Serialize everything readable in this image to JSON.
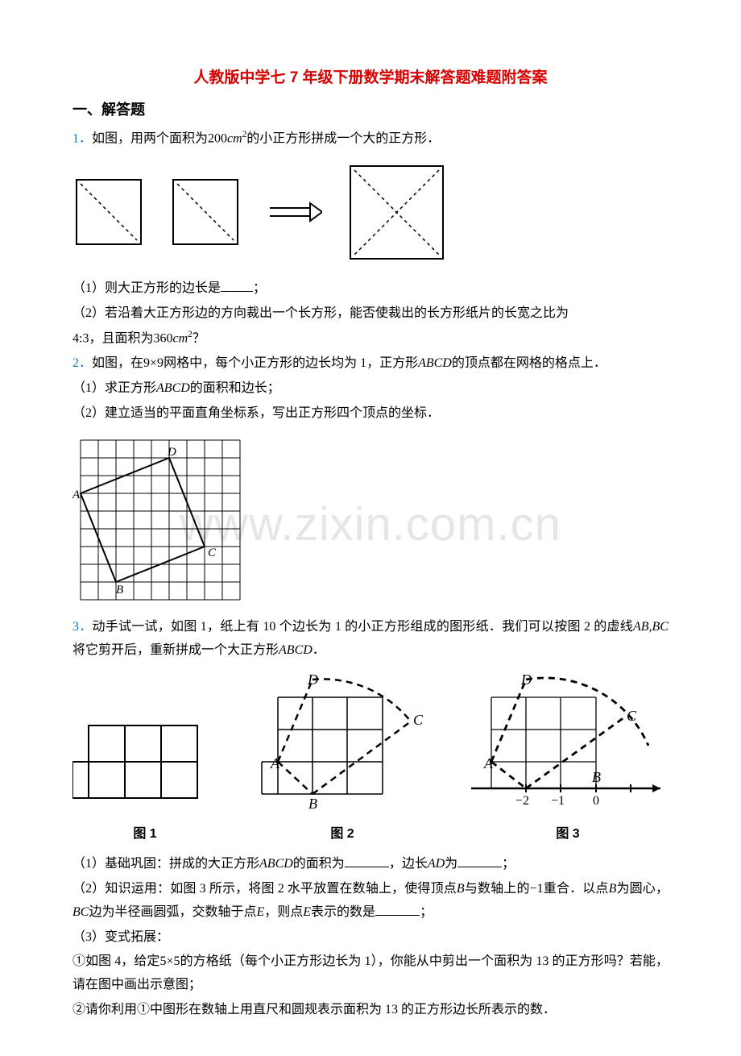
{
  "watermark": "www.zixin.com.cn",
  "title": "人教版中学七 7 年级下册数学期末解答题难题附答案",
  "section_head": "一、解答题",
  "q1": {
    "num": "1．",
    "stem_a": "如图，用两个面积为",
    "expr1_a": "200",
    "expr1_b": "cm",
    "expr1_sup": "2",
    "stem_b": "的小正方形拼成一个大的正方形．",
    "p1": "（1）则大正方形的边长是",
    "p1_tail": "；",
    "p2_a": "（2）若沿着大正方形边的方向裁出一个长方形，能否使裁出的长方形纸片的长宽之比为",
    "p2_b": "4:3",
    "p2_c": "，且面积为",
    "p2_d": "360",
    "p2_e": "cm",
    "p2_sup": "2",
    "p2_f": "？"
  },
  "q2": {
    "num": "2．",
    "stem_a": "如图，在",
    "stem_b": "9×9",
    "stem_c": "网格中，每个小正方形的边长均为 1，正方形",
    "stem_d": "ABCD",
    "stem_e": "的顶点都在网格的格点上．",
    "p1": "（1）求正方形",
    "p1_b": "ABCD",
    "p1_c": "的面积和边长；",
    "p2": "（2）建立适当的平面直角坐标系，写出正方形四个顶点的坐标．",
    "grid": {
      "size": 9,
      "cell": 22,
      "A": [
        0,
        3
      ],
      "B": [
        2,
        8
      ],
      "C": [
        7,
        6
      ],
      "D": [
        5,
        1
      ]
    }
  },
  "q3": {
    "num": "3．",
    "stem_a": "动手试一试，如图 1，纸上有 10 个边长为 1 的小正方形组成的图形纸．我们可以按图 2 的虚线",
    "stem_b": "AB",
    "stem_c": ",",
    "stem_d": "BC",
    "stem_e": "将它剪开后，重新拼成一个大正方形",
    "stem_f": "ABCD",
    "stem_g": "．",
    "labels": {
      "fig1": "图 1",
      "fig2": "图 2",
      "fig3": "图 3"
    },
    "p1_a": "（1）基础巩固：拼成的大正方形",
    "p1_b": "ABCD",
    "p1_c": "的面积为",
    "p1_d": "，边长",
    "p1_e": "AD",
    "p1_f": "为",
    "p1_g": "；",
    "p2_a": "（2）知识运用：如图 3 所示，将图 2 水平放置在数轴上，使得顶点",
    "p2_b": "B",
    "p2_c": "与数轴上的",
    "p2_d": "−1",
    "p2_e": "重合．以点",
    "p2_f": "B",
    "p2_g": "为圆心，",
    "p2_h": "BC",
    "p2_i": "边为半径画圆弧，交数轴于点",
    "p2_j": "E",
    "p2_k": "，则点",
    "p2_l": "E",
    "p2_m": "表示的数是",
    "p2_n": "；",
    "p3": "（3）变式拓展：",
    "p4_a": "如图 4，给定",
    "p4_b": "5×5",
    "p4_c": "的方格纸（每个小正方形边长为 1），你能从中剪出一个面积为 13 的正方形吗？若能，请在图中画出示意图；",
    "p5": "请你利用①中图形在数轴上用直尺和圆规表示面积为 13 的正方形边长所表示的数．",
    "circle1": "①",
    "circle2": "②"
  }
}
